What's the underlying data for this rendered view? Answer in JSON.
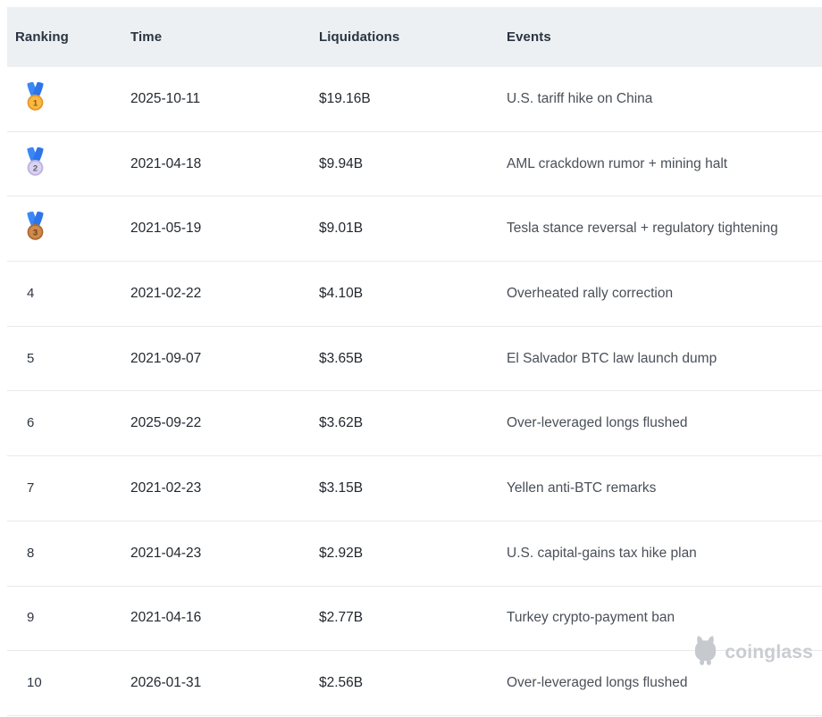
{
  "header": {
    "columns": [
      "Ranking",
      "Time",
      "Liquidations",
      "Events"
    ]
  },
  "rows": [
    {
      "rank": "1",
      "medal": "gold",
      "time": "2025-10-11",
      "liquidations": "$19.16B",
      "event": "U.S. tariff hike on China"
    },
    {
      "rank": "2",
      "medal": "silver",
      "time": "2021-04-18",
      "liquidations": "$9.94B",
      "event": "AML crackdown rumor + mining halt"
    },
    {
      "rank": "3",
      "medal": "bronze",
      "time": "2021-05-19",
      "liquidations": "$9.01B",
      "event": "Tesla stance reversal + regulatory tightening"
    },
    {
      "rank": "4",
      "medal": null,
      "time": "2021-02-22",
      "liquidations": "$4.10B",
      "event": "Overheated rally correction"
    },
    {
      "rank": "5",
      "medal": null,
      "time": "2021-09-07",
      "liquidations": "$3.65B",
      "event": "El Salvador BTC law launch dump"
    },
    {
      "rank": "6",
      "medal": null,
      "time": "2025-09-22",
      "liquidations": "$3.62B",
      "event": "Over-leveraged longs flushed"
    },
    {
      "rank": "7",
      "medal": null,
      "time": "2021-02-23",
      "liquidations": "$3.15B",
      "event": "Yellen anti-BTC remarks"
    },
    {
      "rank": "8",
      "medal": null,
      "time": "2021-04-23",
      "liquidations": "$2.92B",
      "event": "U.S. capital-gains tax hike plan"
    },
    {
      "rank": "9",
      "medal": null,
      "time": "2021-04-16",
      "liquidations": "$2.77B",
      "event": "Turkey crypto-payment ban"
    },
    {
      "rank": "10",
      "medal": null,
      "time": "2026-01-31",
      "liquidations": "$2.56B",
      "event": "Over-leveraged longs flushed"
    }
  ],
  "watermark": {
    "brand": "coinglass"
  },
  "icons": {
    "medal_gold": "first-place-medal-icon",
    "medal_silver": "second-place-medal-icon",
    "medal_bronze": "third-place-medal-icon",
    "logo": "coinglass-bear-logo-icon"
  },
  "colors": {
    "header_bg": "#EDF0F3",
    "divider": "#E7E9EC",
    "header_text": "#2A3442",
    "primary_text": "#23282F",
    "event_text": "#4A5058",
    "watermark_gray": "#C9CCD1",
    "ribbon_left": "#3B87F4",
    "ribbon_right": "#2E74EA",
    "medals": {
      "gold": {
        "ring": "#E9962B",
        "center": "#F9B942",
        "number": "#8C5B12"
      },
      "silver": {
        "ring": "#BFB3DE",
        "center": "#DAD3F0",
        "number": "#63606F"
      },
      "bronze": {
        "ring": "#B06A2F",
        "center": "#CE8B4D",
        "number": "#6E3D14"
      }
    }
  }
}
